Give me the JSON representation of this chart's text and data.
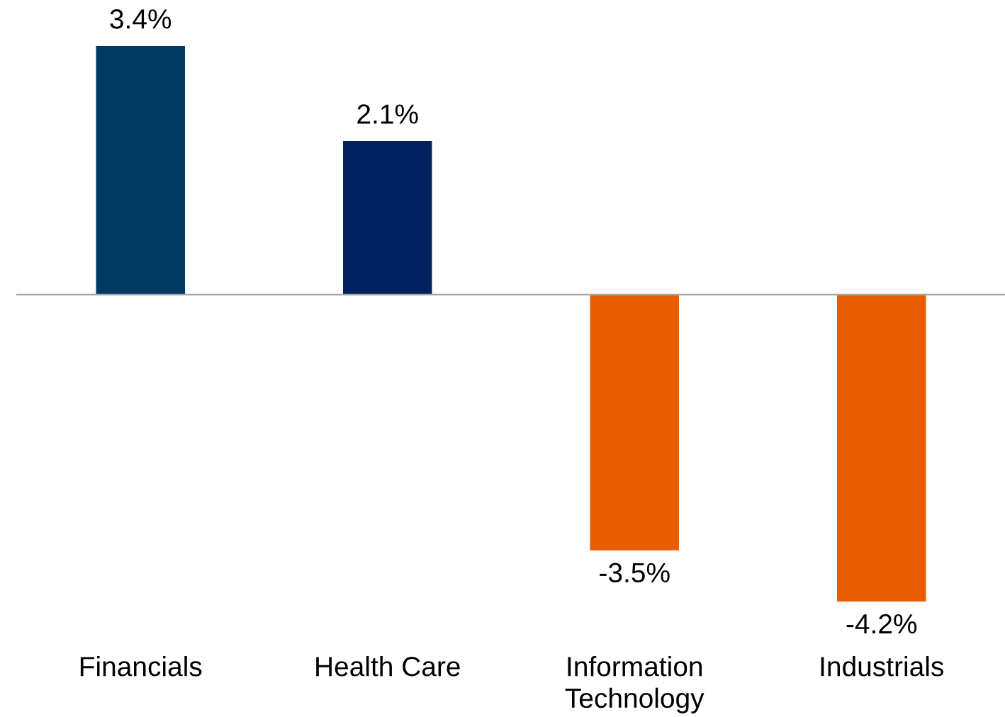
{
  "chart_data": {
    "type": "bar",
    "categories": [
      "Financials",
      "Health Care",
      "Information\nTechnology",
      "Industrials"
    ],
    "values": [
      3.4,
      2.1,
      -3.5,
      -4.2
    ],
    "colors": [
      "#003a63",
      "#002060",
      "#e85d00",
      "#e85d00"
    ],
    "value_labels": [
      "3.4%",
      "2.1%",
      "-3.5%",
      "-4.2%"
    ]
  }
}
